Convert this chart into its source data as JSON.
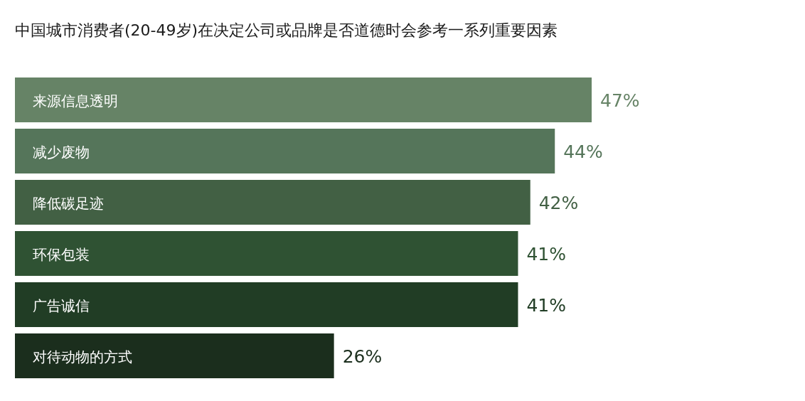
{
  "chart_data": {
    "type": "bar",
    "orientation": "horizontal",
    "title": "中国城市消费者(20-49岁)在决定公司或品牌是否道德时会参考一系列重要因素",
    "categories": [
      "来源信息透明",
      "减少废物",
      "降低碳足迹",
      "环保包装",
      "广告诚信",
      "对待动物的方式"
    ],
    "values": [
      47,
      44,
      42,
      41,
      41,
      26
    ],
    "colors": [
      "#668366",
      "#55755a",
      "#426044",
      "#2f5233",
      "#213d25",
      "#1b2e1d"
    ],
    "value_labels": [
      "47%",
      "44%",
      "42%",
      "41%",
      "41%",
      "26%"
    ]
  }
}
